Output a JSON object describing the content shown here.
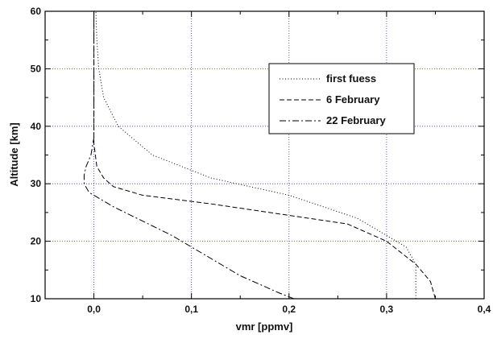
{
  "chart_data": {
    "type": "line",
    "xlabel": "vmr [ppmv]",
    "ylabel": "Altitude [km]",
    "xlim": [
      -0.05,
      0.4
    ],
    "ylim": [
      10,
      60
    ],
    "x_ticks": [
      "0,0",
      "0,1",
      "0,2",
      "0,3",
      "0,4"
    ],
    "x_tick_values": [
      0.0,
      0.1,
      0.2,
      0.3,
      0.4
    ],
    "y_ticks": [
      "10",
      "20",
      "30",
      "40",
      "50",
      "60"
    ],
    "y_tick_values": [
      10,
      20,
      30,
      40,
      50,
      60
    ],
    "grid": true,
    "legend_position": "top-right",
    "series": [
      {
        "name": "first fuess",
        "style": "dotted",
        "points": [
          [
            0.33,
            10
          ],
          [
            0.33,
            16
          ],
          [
            0.32,
            19
          ],
          [
            0.3,
            21
          ],
          [
            0.27,
            24
          ],
          [
            0.2,
            28
          ],
          [
            0.12,
            31
          ],
          [
            0.06,
            35
          ],
          [
            0.025,
            40
          ],
          [
            0.01,
            45
          ],
          [
            0.005,
            50
          ],
          [
            0.003,
            55
          ],
          [
            0.002,
            60
          ]
        ]
      },
      {
        "name": "6 February",
        "style": "dashed",
        "points": [
          [
            0.35,
            10
          ],
          [
            0.345,
            13
          ],
          [
            0.33,
            16
          ],
          [
            0.3,
            20
          ],
          [
            0.26,
            23
          ],
          [
            0.18,
            25
          ],
          [
            0.12,
            26.5
          ],
          [
            0.05,
            28
          ],
          [
            0.02,
            29.5
          ],
          [
            0.01,
            31
          ],
          [
            0.003,
            33
          ],
          [
            0.0,
            37
          ],
          [
            0.0,
            45
          ],
          [
            0.0,
            55
          ],
          [
            0.0,
            60
          ]
        ]
      },
      {
        "name": "22 February",
        "style": "dash-dot",
        "points": [
          [
            0.205,
            10
          ],
          [
            0.19,
            11
          ],
          [
            0.15,
            14
          ],
          [
            0.11,
            18
          ],
          [
            0.08,
            21
          ],
          [
            0.05,
            23.5
          ],
          [
            0.02,
            26
          ],
          [
            0.005,
            27.5
          ],
          [
            -0.005,
            28.5
          ],
          [
            -0.01,
            30
          ],
          [
            -0.01,
            31.5
          ],
          [
            -0.008,
            33
          ],
          [
            -0.003,
            35
          ],
          [
            0.0,
            38
          ],
          [
            0.0,
            45
          ],
          [
            0.0,
            55
          ],
          [
            0.0,
            60
          ]
        ]
      }
    ]
  }
}
